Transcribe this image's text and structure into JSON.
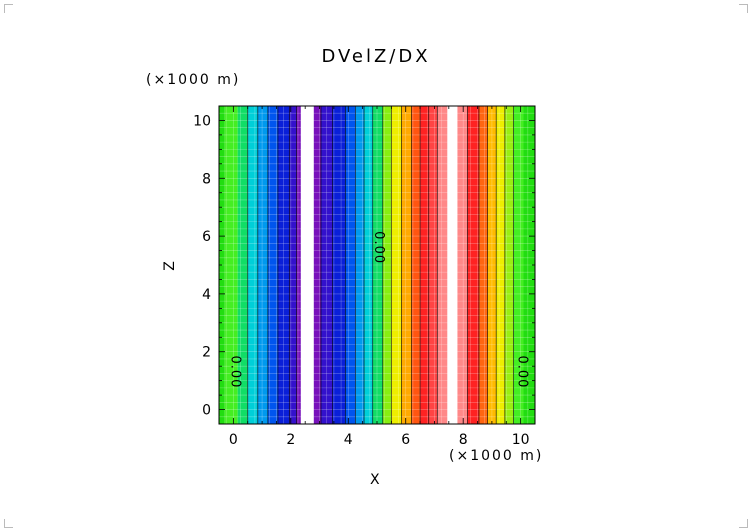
{
  "chart_data": {
    "type": "heatmap",
    "title": "DVelZ/DX",
    "xlabel": "X",
    "ylabel": "Z",
    "x_multiplier": "(×1000 m)",
    "y_multiplier": "(×1000 m)",
    "xlim": [
      -0.5,
      10.5
    ],
    "ylim": [
      -0.5,
      10.5
    ],
    "x_ticks": [
      "0",
      "2",
      "4",
      "6",
      "8",
      "10"
    ],
    "y_ticks": [
      "0",
      "2",
      "4",
      "6",
      "8",
      "10"
    ],
    "contour_labels": [
      {
        "text": "0.00",
        "x": 0.05,
        "y": 1.3
      },
      {
        "text": "0.00",
        "x": 5.05,
        "y": 5.6
      },
      {
        "text": "0.00",
        "x": 10.05,
        "y": 1.3
      }
    ],
    "bands": [
      {
        "x0": -0.5,
        "x1": -0.3,
        "color": "#22dd11"
      },
      {
        "x0": -0.3,
        "x1": 0.15,
        "color": "#44ee22"
      },
      {
        "x0": 0.15,
        "x1": 0.5,
        "color": "#11dd66"
      },
      {
        "x0": 0.5,
        "x1": 0.85,
        "color": "#00cfd8"
      },
      {
        "x0": 0.85,
        "x1": 1.2,
        "color": "#0099ee"
      },
      {
        "x0": 1.2,
        "x1": 1.55,
        "color": "#0055ee"
      },
      {
        "x0": 1.55,
        "x1": 1.95,
        "color": "#0a1fd8"
      },
      {
        "x0": 1.95,
        "x1": 2.2,
        "color": "#3311cc"
      },
      {
        "x0": 2.2,
        "x1": 2.35,
        "color": "#7711bb"
      },
      {
        "x0": 2.35,
        "x1": 2.8,
        "color": "#ffffff"
      },
      {
        "x0": 2.8,
        "x1": 3.05,
        "color": "#7711bb"
      },
      {
        "x0": 3.05,
        "x1": 3.45,
        "color": "#3311cc"
      },
      {
        "x0": 3.45,
        "x1": 3.9,
        "color": "#0a1fd8"
      },
      {
        "x0": 3.9,
        "x1": 4.25,
        "color": "#0055ee"
      },
      {
        "x0": 4.25,
        "x1": 4.55,
        "color": "#0099ee"
      },
      {
        "x0": 4.55,
        "x1": 4.85,
        "color": "#00cfd8"
      },
      {
        "x0": 4.85,
        "x1": 5.2,
        "color": "#11dd66"
      },
      {
        "x0": 5.2,
        "x1": 5.5,
        "color": "#88ee11"
      },
      {
        "x0": 5.5,
        "x1": 5.85,
        "color": "#eeee00"
      },
      {
        "x0": 5.85,
        "x1": 6.2,
        "color": "#ffaa00"
      },
      {
        "x0": 6.2,
        "x1": 6.5,
        "color": "#ff5511"
      },
      {
        "x0": 6.5,
        "x1": 6.8,
        "color": "#ff2222"
      },
      {
        "x0": 6.8,
        "x1": 7.1,
        "color": "#ff4444"
      },
      {
        "x0": 7.1,
        "x1": 7.45,
        "color": "#ff8888"
      },
      {
        "x0": 7.45,
        "x1": 7.8,
        "color": "#ffffff"
      },
      {
        "x0": 7.8,
        "x1": 8.15,
        "color": "#ff8888"
      },
      {
        "x0": 8.15,
        "x1": 8.55,
        "color": "#ff2222"
      },
      {
        "x0": 8.55,
        "x1": 8.85,
        "color": "#ff6611"
      },
      {
        "x0": 8.85,
        "x1": 9.15,
        "color": "#ffbb00"
      },
      {
        "x0": 9.15,
        "x1": 9.45,
        "color": "#eeee00"
      },
      {
        "x0": 9.45,
        "x1": 9.75,
        "color": "#99ee11"
      },
      {
        "x0": 9.75,
        "x1": 10.1,
        "color": "#44ee22"
      },
      {
        "x0": 10.1,
        "x1": 10.5,
        "color": "#22dd11"
      }
    ],
    "contour_x": [
      0.5,
      0.85,
      1.2,
      1.55,
      1.95,
      2.2,
      3.05,
      3.45,
      3.9,
      4.25,
      4.55,
      4.85,
      5.2,
      5.5,
      5.85,
      6.2,
      6.5,
      6.8,
      7.1,
      8.15,
      8.55,
      8.85,
      9.15,
      9.45,
      9.75
    ],
    "grid": true
  }
}
